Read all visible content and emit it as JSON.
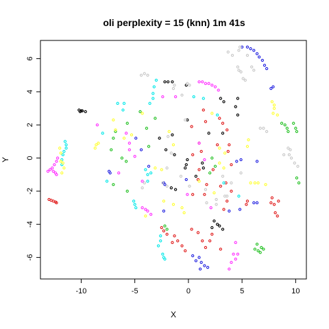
{
  "chart_data": {
    "type": "scatter",
    "title": "oli perplexity = 15 (knn) 1m 41s",
    "xlabel": "X",
    "ylabel": "Y",
    "xlim": [
      -13.8,
      11.0
    ],
    "ylim": [
      -7.3,
      7.1
    ],
    "xticks": [
      -10,
      -5,
      0,
      5,
      10
    ],
    "yticks": [
      -6,
      -4,
      -2,
      0,
      2,
      4,
      6
    ],
    "xtick_labels": [
      "-10",
      "-5",
      "0",
      "5",
      "10"
    ],
    "ytick_labels": [
      "-6",
      "-4",
      "-2",
      "0",
      "2",
      "4",
      "6"
    ],
    "grid": false,
    "legend": "none",
    "marker": "open-circle",
    "series": [
      {
        "color": "#000000",
        "points": [
          [
            -10.2,
            2.9
          ],
          [
            -10.0,
            2.85
          ],
          [
            -9.9,
            2.85
          ],
          [
            -10.1,
            2.8
          ],
          [
            -9.6,
            2.8
          ],
          [
            -2.2,
            4.6
          ],
          [
            -1.9,
            4.6
          ],
          [
            -1.5,
            4.6
          ],
          [
            -0.2,
            4.4
          ],
          [
            3.0,
            3.6
          ],
          [
            3.3,
            3.4
          ],
          [
            4.6,
            3.6
          ],
          [
            4.4,
            3.1
          ],
          [
            4.6,
            2.6
          ],
          [
            -1.5,
            1.4
          ],
          [
            -2.7,
            1.2
          ],
          [
            -1.3,
            0.2
          ],
          [
            -2.1,
            0.5
          ],
          [
            -0.1,
            -0.1
          ],
          [
            -0.2,
            -0.4
          ],
          [
            -0.3,
            -0.6
          ],
          [
            1.3,
            -0.3
          ],
          [
            1.4,
            -0.6
          ],
          [
            -1.6,
            -1.8
          ],
          [
            -1.2,
            -1.9
          ],
          [
            2.4,
            -3.8
          ],
          [
            2.7,
            -4.0
          ],
          [
            2.9,
            -4.1
          ],
          [
            3.2,
            -4.3
          ],
          [
            2.2,
            -4.2
          ],
          [
            3.2,
            1.5
          ],
          [
            1.9,
            1.5
          ],
          [
            -0.1,
            2.3
          ],
          [
            0.7,
            -1.1
          ]
        ]
      },
      {
        "color": "#e01b1b",
        "points": [
          [
            -13.0,
            -2.5
          ],
          [
            -12.8,
            -2.55
          ],
          [
            -12.6,
            -2.6
          ],
          [
            -12.4,
            -2.65
          ],
          [
            -12.3,
            -2.7
          ],
          [
            -2.5,
            -4.2
          ],
          [
            -2.3,
            -4.4
          ],
          [
            -2.0,
            -4.6
          ],
          [
            -1.3,
            -4.7
          ],
          [
            -1.0,
            -5.0
          ],
          [
            -0.6,
            -5.3
          ],
          [
            -0.3,
            -5.6
          ],
          [
            -1.5,
            -5.1
          ],
          [
            0.3,
            -4.3
          ],
          [
            0.9,
            -4.5
          ],
          [
            1.3,
            -5.0
          ],
          [
            1.6,
            -5.4
          ],
          [
            2.0,
            -5.0
          ],
          [
            2.2,
            -4.6
          ],
          [
            3.0,
            -5.5
          ],
          [
            1.6,
            2.2
          ],
          [
            1.0,
            0.9
          ],
          [
            1.2,
            0.4
          ],
          [
            0.4,
            0.2
          ],
          [
            1.0,
            -0.7
          ],
          [
            0.9,
            -1.3
          ],
          [
            1.7,
            -1.6
          ],
          [
            1.5,
            -2.2
          ],
          [
            0.4,
            -2.2
          ],
          [
            2.9,
            2.4
          ],
          [
            3.2,
            2.1
          ],
          [
            3.6,
            1.7
          ],
          [
            3.8,
            0.8
          ],
          [
            3.7,
            0.4
          ],
          [
            4.0,
            -0.4
          ],
          [
            3.5,
            -1.5
          ],
          [
            3.0,
            -1.7
          ],
          [
            4.0,
            -2.0
          ],
          [
            3.6,
            -2.6
          ],
          [
            5.5,
            -2.6
          ],
          [
            5.4,
            -2.8
          ],
          [
            7.7,
            -2.7
          ],
          [
            8.0,
            -2.8
          ],
          [
            8.1,
            -3.3
          ],
          [
            8.3,
            -3.5
          ],
          [
            7.8,
            -2.4
          ],
          [
            8.4,
            -2.6
          ],
          [
            3.3,
            -3.1
          ],
          [
            1.4,
            2.9
          ],
          [
            0.3,
            1.9
          ],
          [
            2.3,
            -0.7
          ],
          [
            2.7,
            0.8
          ]
        ]
      },
      {
        "color": "#22c022",
        "points": [
          [
            6.2,
            -5.5
          ],
          [
            6.5,
            -5.6
          ],
          [
            6.7,
            -5.7
          ],
          [
            6.4,
            -5.2
          ],
          [
            6.8,
            -5.4
          ],
          [
            7.0,
            -5.5
          ],
          [
            8.7,
            2.1
          ],
          [
            9.0,
            2.0
          ],
          [
            9.2,
            1.8
          ],
          [
            9.3,
            1.6
          ],
          [
            9.8,
            2.1
          ],
          [
            10.0,
            1.8
          ],
          [
            10.1,
            1.6
          ],
          [
            10.1,
            -1.2
          ],
          [
            10.3,
            -1.5
          ],
          [
            -6.8,
            1.6
          ],
          [
            -7.0,
            1.2
          ],
          [
            -7.2,
            0.5
          ],
          [
            -6.2,
            0.0
          ],
          [
            -5.8,
            -0.2
          ],
          [
            -7.0,
            -1.6
          ],
          [
            -5.7,
            2.1
          ],
          [
            -4.5,
            2.8
          ],
          [
            -3.9,
            1.8
          ],
          [
            -3.7,
            0.7
          ],
          [
            -2.2,
            -4.1
          ],
          [
            -2.0,
            -4.3
          ],
          [
            -5.7,
            -2.0
          ],
          [
            -3.1,
            2.4
          ],
          [
            2.2,
            0.0
          ],
          [
            2.5,
            -0.5
          ],
          [
            2.0,
            -0.9
          ]
        ]
      },
      {
        "color": "#2222e0",
        "points": [
          [
            5.0,
            6.7
          ],
          [
            5.5,
            6.7
          ],
          [
            5.8,
            6.6
          ],
          [
            6.1,
            6.5
          ],
          [
            6.4,
            6.3
          ],
          [
            6.6,
            6.1
          ],
          [
            6.9,
            5.9
          ],
          [
            7.1,
            5.6
          ],
          [
            7.3,
            5.4
          ],
          [
            1.0,
            -6.0
          ],
          [
            1.2,
            -6.3
          ],
          [
            1.5,
            -6.5
          ],
          [
            1.8,
            -6.6
          ],
          [
            1.1,
            -6.7
          ],
          [
            0.4,
            -5.9
          ],
          [
            0.7,
            -6.2
          ],
          [
            -4.9,
            1.2
          ],
          [
            -4.4,
            0.5
          ],
          [
            -3.7,
            -0.5
          ],
          [
            -2.3,
            -1.5
          ],
          [
            -2.2,
            -1.6
          ],
          [
            -7.4,
            -0.8
          ],
          [
            -7.3,
            -0.9
          ],
          [
            -2.3,
            -3.2
          ],
          [
            -0.2,
            -1.3
          ],
          [
            3.8,
            -3.2
          ],
          [
            4.8,
            -3.1
          ],
          [
            6.1,
            -2.7
          ],
          [
            6.4,
            -2.7
          ],
          [
            4.5,
            -0.2
          ],
          [
            4.9,
            -0.1
          ],
          [
            6.4,
            -0.2
          ],
          [
            7.7,
            4.2
          ],
          [
            7.9,
            4.3
          ]
        ]
      },
      {
        "color": "#00e8e8",
        "points": [
          [
            -11.5,
            1.0
          ],
          [
            -11.4,
            0.8
          ],
          [
            -11.4,
            0.6
          ],
          [
            -11.6,
            0.4
          ],
          [
            -11.7,
            0.2
          ],
          [
            -11.8,
            -0.1
          ],
          [
            -11.8,
            -0.4
          ],
          [
            -3.0,
            4.7
          ],
          [
            -3.2,
            4.3
          ],
          [
            -3.3,
            3.9
          ],
          [
            -3.3,
            3.6
          ],
          [
            -3.6,
            3.3
          ],
          [
            -2.4,
            -5.8
          ],
          [
            -2.3,
            -6.0
          ],
          [
            -2.2,
            -6.1
          ],
          [
            -2.6,
            -4.7
          ],
          [
            -2.6,
            -5.0
          ],
          [
            -2.8,
            -5.3
          ],
          [
            -6.0,
            3.3
          ],
          [
            -6.1,
            2.9
          ],
          [
            -6.6,
            3.3
          ],
          [
            -4.0,
            -0.7
          ],
          [
            -3.8,
            -1.0
          ],
          [
            -3.8,
            -1.4
          ],
          [
            -5.1,
            -2.6
          ],
          [
            -5.0,
            -2.8
          ],
          [
            -4.9,
            -3.0
          ],
          [
            -3.5,
            -0.9
          ],
          [
            1.4,
            3.6
          ],
          [
            0.5,
            3.7
          ],
          [
            -8.0,
            1.5
          ],
          [
            -7.6,
            -1.4
          ],
          [
            2.7,
            2.6
          ],
          [
            3.3,
            -1.5
          ],
          [
            4.7,
            -2.3
          ]
        ]
      },
      {
        "color": "#ff30ff",
        "points": [
          [
            -12.7,
            -0.6
          ],
          [
            -12.6,
            -0.8
          ],
          [
            -12.4,
            -0.9
          ],
          [
            -12.3,
            -1.0
          ],
          [
            -12.5,
            -0.4
          ],
          [
            -12.3,
            -0.2
          ],
          [
            -12.2,
            0.0
          ],
          [
            -13.1,
            -0.8
          ],
          [
            -12.9,
            -0.7
          ],
          [
            1.0,
            4.6
          ],
          [
            1.3,
            4.6
          ],
          [
            1.6,
            4.5
          ],
          [
            1.9,
            4.5
          ],
          [
            2.2,
            4.4
          ],
          [
            2.5,
            4.3
          ],
          [
            2.8,
            4.1
          ],
          [
            -4.3,
            -3.0
          ],
          [
            -4.0,
            -3.1
          ],
          [
            -3.8,
            -3.2
          ],
          [
            -3.5,
            -3.4
          ],
          [
            -5.5,
            0.9
          ],
          [
            -5.5,
            0.5
          ],
          [
            -5.0,
            0.1
          ],
          [
            -5.8,
            1.5
          ],
          [
            4.2,
            -5.8
          ],
          [
            4.6,
            -5.8
          ],
          [
            4.4,
            -6.1
          ],
          [
            4.0,
            -6.3
          ],
          [
            3.8,
            -6.7
          ],
          [
            2.1,
            -3.0
          ],
          [
            4.4,
            -5.1
          ],
          [
            -1.2,
            3.7
          ],
          [
            -2.4,
            3.7
          ],
          [
            1.0,
            0.9
          ],
          [
            -0.1,
            -2.2
          ],
          [
            -8.5,
            2.0
          ],
          [
            -6.5,
            -0.9
          ],
          [
            -4.3,
            -1.4
          ],
          [
            1.5,
            -0.1
          ]
        ]
      },
      {
        "color": "#ffff30",
        "points": [
          [
            -12.0,
            0.6
          ],
          [
            -11.9,
            0.3
          ],
          [
            -11.7,
            -0.3
          ],
          [
            -11.6,
            -0.6
          ],
          [
            -11.8,
            -0.9
          ],
          [
            -11.9,
            -0.2
          ],
          [
            -8.6,
            0.8
          ],
          [
            -8.7,
            0.6
          ],
          [
            -8.4,
            0.9
          ],
          [
            -7.0,
            2.3
          ],
          [
            -6.8,
            1.7
          ],
          [
            -6.0,
            1.2
          ],
          [
            -5.3,
            1.4
          ],
          [
            -3.1,
            -0.6
          ],
          [
            -2.5,
            -0.7
          ],
          [
            -1.4,
            0.8
          ],
          [
            -1.8,
            1.6
          ],
          [
            -1.4,
            -2.8
          ],
          [
            -0.6,
            -3.0
          ],
          [
            -0.4,
            -3.3
          ],
          [
            -4.0,
            -3.5
          ],
          [
            2.9,
            -0.3
          ],
          [
            3.3,
            -0.6
          ],
          [
            2.9,
            0.6
          ],
          [
            3.4,
            0.3
          ],
          [
            5.5,
            0.7
          ],
          [
            5.6,
            1.1
          ],
          [
            5.8,
            -1.5
          ],
          [
            6.2,
            -1.5
          ],
          [
            6.5,
            -1.5
          ],
          [
            7.2,
            -1.6
          ],
          [
            7.8,
            3.4
          ],
          [
            8.0,
            3.2
          ],
          [
            8.0,
            3.0
          ],
          [
            7.9,
            2.7
          ],
          [
            8.3,
            2.6
          ],
          [
            1.0,
            -1.4
          ],
          [
            2.2,
            2.7
          ],
          [
            2.4,
            -2.1
          ],
          [
            -4.3,
            2.7
          ],
          [
            -2.3,
            -2.6
          ]
        ]
      },
      {
        "color": "#c8c8c8",
        "points": [
          [
            3.7,
            6.4
          ],
          [
            4.1,
            6.2
          ],
          [
            4.7,
            6.5
          ],
          [
            4.8,
            6.7
          ],
          [
            5.5,
            6.2
          ],
          [
            5.9,
            5.5
          ],
          [
            6.1,
            5.3
          ],
          [
            4.6,
            5.5
          ],
          [
            4.7,
            5.3
          ],
          [
            4.9,
            5.2
          ],
          [
            5.1,
            4.8
          ],
          [
            5.3,
            4.7
          ],
          [
            -4.4,
            5.0
          ],
          [
            -4.1,
            5.1
          ],
          [
            -3.8,
            5.0
          ],
          [
            -1.3,
            4.4
          ],
          [
            -1.4,
            4.2
          ],
          [
            -0.1,
            4.5
          ],
          [
            0.1,
            4.4
          ],
          [
            -0.6,
            3.8
          ],
          [
            -0.3,
            2.3
          ],
          [
            -1.9,
            1.3
          ],
          [
            -1.6,
            0.3
          ],
          [
            -2.0,
            -0.6
          ],
          [
            -0.7,
            -1.1
          ],
          [
            0.1,
            -1.7
          ],
          [
            -2.0,
            -1.7
          ],
          [
            -2.4,
            -1.5
          ],
          [
            -4.1,
            -1.5
          ],
          [
            -4.3,
            -1.8
          ],
          [
            1.6,
            -1.9
          ],
          [
            1.7,
            -2.7
          ],
          [
            2.6,
            -2.5
          ],
          [
            2.6,
            -2.8
          ],
          [
            3.6,
            -2.3
          ],
          [
            4.0,
            -1.5
          ],
          [
            3.2,
            -1.1
          ],
          [
            4.9,
            -0.9
          ],
          [
            6.7,
            1.8
          ],
          [
            7.0,
            1.8
          ],
          [
            7.3,
            1.6
          ],
          [
            8.9,
            0.2
          ],
          [
            9.4,
            0.2
          ],
          [
            9.6,
            0.0
          ],
          [
            9.9,
            -0.3
          ],
          [
            10.2,
            -0.5
          ],
          [
            9.3,
            0.6
          ],
          [
            9.5,
            0.5
          ],
          [
            3.4,
            -2.3
          ]
        ]
      }
    ]
  }
}
